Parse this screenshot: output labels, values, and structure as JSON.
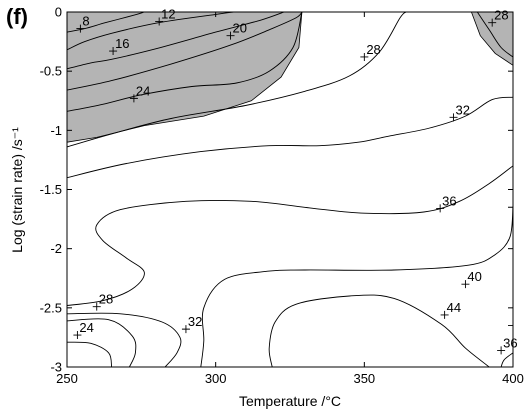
{
  "panel_label": "(f)",
  "chart_data": {
    "type": "contour",
    "xlabel": "Temperature /°C",
    "ylabel": "Log (strain rate) /s⁻¹",
    "xlim": [
      250,
      400
    ],
    "ylim": [
      -3,
      0
    ],
    "x_ticks": [
      {
        "v": 250,
        "label": "250"
      },
      {
        "v": 300,
        "label": "300"
      },
      {
        "v": 350,
        "label": "350"
      },
      {
        "v": 400,
        "label": "400"
      }
    ],
    "y_ticks": [
      {
        "v": 0,
        "label": "0"
      },
      {
        "v": -0.5,
        "label": "-0.5"
      },
      {
        "v": -1,
        "label": "-1"
      },
      {
        "v": -1.5,
        "label": "-1.5"
      },
      {
        "v": -2,
        "label": "-2"
      },
      {
        "v": -2.5,
        "label": "-2.5"
      },
      {
        "v": -3,
        "label": "-3"
      }
    ],
    "shaded_regions": [
      {
        "name": "instability-region-top-left",
        "fill": "#b4b4b4",
        "boundary": [
          [
            250,
            0
          ],
          [
            329,
            0
          ],
          [
            328,
            -0.3
          ],
          [
            322,
            -0.55
          ],
          [
            312,
            -0.75
          ],
          [
            296,
            -0.88
          ],
          [
            276,
            -0.96
          ],
          [
            260,
            -1.06
          ],
          [
            250,
            -1.1
          ]
        ]
      },
      {
        "name": "instability-region-top-right",
        "fill": "#b4b4b4",
        "boundary": [
          [
            386,
            0
          ],
          [
            400,
            0
          ],
          [
            400,
            -0.45
          ],
          [
            394,
            -0.35
          ],
          [
            389,
            -0.2
          ]
        ]
      }
    ],
    "contours": [
      {
        "level": 8,
        "label": "8",
        "label_at": [
          254.5,
          -0.14
        ],
        "points": [
          [
            250,
            -0.17
          ],
          [
            256,
            -0.14
          ],
          [
            263,
            -0.09
          ],
          [
            272,
            -0.03
          ],
          [
            276,
            0
          ]
        ]
      },
      {
        "level": 12,
        "label": "12",
        "label_at": [
          281,
          -0.08
        ],
        "points": [
          [
            250,
            -0.32
          ],
          [
            256,
            -0.25
          ],
          [
            265,
            -0.18
          ],
          [
            281,
            -0.09
          ],
          [
            300,
            -0.02
          ],
          [
            306,
            0
          ]
        ]
      },
      {
        "level": 16,
        "label": "16",
        "label_at": [
          265.5,
          -0.33
        ],
        "points": [
          [
            250,
            -0.48
          ],
          [
            258,
            -0.43
          ],
          [
            265,
            -0.4
          ],
          [
            280,
            -0.31
          ],
          [
            300,
            -0.17
          ],
          [
            315,
            -0.07
          ],
          [
            323,
            0
          ]
        ]
      },
      {
        "level": 20,
        "label": "20",
        "label_at": [
          305,
          -0.2
        ],
        "points": [
          [
            250,
            -0.66
          ],
          [
            265,
            -0.58
          ],
          [
            285,
            -0.44
          ],
          [
            305,
            -0.28
          ],
          [
            318,
            -0.15
          ],
          [
            327,
            -0.05
          ],
          [
            329,
            0
          ]
        ]
      },
      {
        "level": 24,
        "label": "24",
        "label_at": [
          272.5,
          -0.73
        ],
        "points": [
          [
            250,
            -0.84
          ],
          [
            262,
            -0.78
          ],
          [
            275,
            -0.7
          ],
          [
            292,
            -0.63
          ],
          [
            307,
            -0.6
          ],
          [
            318,
            -0.5
          ],
          [
            326,
            -0.3
          ],
          [
            329,
            0
          ]
        ]
      },
      {
        "level": 28,
        "label": "28",
        "label_at": [
          350,
          -0.38
        ],
        "points": [
          [
            250,
            -1.14
          ],
          [
            265,
            -1.03
          ],
          [
            285,
            -0.9
          ],
          [
            310,
            -0.79
          ],
          [
            330,
            -0.67
          ],
          [
            345,
            -0.54
          ],
          [
            355,
            -0.34
          ],
          [
            362,
            -0.05
          ],
          [
            364,
            0
          ]
        ]
      },
      {
        "level": 28,
        "label": "28",
        "label_at": [
          393,
          -0.09
        ],
        "points": [
          [
            388,
            0
          ],
          [
            392,
            -0.15
          ],
          [
            396,
            -0.3
          ],
          [
            400,
            -0.38
          ]
        ]
      },
      {
        "level": 32,
        "label": "32",
        "label_at": [
          380,
          -0.89
        ],
        "points": [
          [
            250,
            -1.4
          ],
          [
            270,
            -1.28
          ],
          [
            295,
            -1.18
          ],
          [
            318,
            -1.13
          ],
          [
            335,
            -1.13
          ],
          [
            348,
            -1.1
          ],
          [
            358,
            -1.05
          ],
          [
            372,
            -0.98
          ],
          [
            384,
            -0.88
          ],
          [
            393,
            -0.74
          ],
          [
            400,
            -0.72
          ]
        ]
      },
      {
        "level": 36,
        "label": "36",
        "label_at": [
          375.5,
          -1.66
        ],
        "points": [
          [
            400,
            -1.3
          ],
          [
            392,
            -1.45
          ],
          [
            382,
            -1.6
          ],
          [
            370,
            -1.69
          ],
          [
            350,
            -1.7
          ],
          [
            333,
            -1.66
          ],
          [
            312,
            -1.6
          ],
          [
            290,
            -1.6
          ],
          [
            268,
            -1.67
          ],
          [
            260,
            -1.8
          ],
          [
            262,
            -1.93
          ],
          [
            270,
            -2.08
          ],
          [
            276,
            -2.2
          ],
          [
            272,
            -2.34
          ],
          [
            262,
            -2.44
          ],
          [
            250,
            -2.48
          ]
        ]
      },
      {
        "level": 40,
        "label": "40",
        "label_at": [
          384,
          -2.3
        ],
        "points": [
          [
            400,
            -1.63
          ],
          [
            399,
            -1.9
          ],
          [
            394,
            -2.05
          ],
          [
            385,
            -2.14
          ],
          [
            360,
            -2.18
          ],
          [
            330,
            -2.18
          ],
          [
            318,
            -2.19
          ],
          [
            303,
            -2.26
          ],
          [
            296,
            -2.5
          ],
          [
            296,
            -2.78
          ],
          [
            295,
            -3.0
          ]
        ]
      },
      {
        "level": 44,
        "label": "44",
        "label_at": [
          377,
          -2.56
        ],
        "points": [
          [
            392,
            -3.0
          ],
          [
            384,
            -2.84
          ],
          [
            376,
            -2.64
          ],
          [
            360,
            -2.42
          ],
          [
            345,
            -2.4
          ],
          [
            327,
            -2.47
          ],
          [
            320,
            -2.62
          ],
          [
            318,
            -2.84
          ],
          [
            319,
            -3.0
          ]
        ]
      },
      {
        "level": 36,
        "label": "36",
        "label_at": [
          396,
          -2.86
        ],
        "points": [
          [
            400,
            -2.88
          ],
          [
            397,
            -2.94
          ],
          [
            396,
            -3.0
          ]
        ]
      },
      {
        "level": 32,
        "label": "32",
        "label_at": [
          290,
          -2.68
        ],
        "points": [
          [
            250,
            -2.55
          ],
          [
            268,
            -2.55
          ],
          [
            282,
            -2.62
          ],
          [
            288,
            -2.75
          ],
          [
            287,
            -2.88
          ],
          [
            283,
            -3.0
          ]
        ]
      },
      {
        "level": 28,
        "label": "28",
        "label_at": [
          260,
          -2.49
        ],
        "points": [
          [
            250,
            -2.61
          ],
          [
            264,
            -2.6
          ],
          [
            272,
            -2.74
          ],
          [
            273,
            -2.88
          ],
          [
            271,
            -3.0
          ]
        ]
      },
      {
        "level": 24,
        "label": "24",
        "label_at": [
          253.5,
          -2.73
        ],
        "points": [
          [
            250,
            -2.79
          ],
          [
            258,
            -2.8
          ],
          [
            264,
            -2.88
          ],
          [
            265,
            -3.0
          ]
        ]
      }
    ],
    "right_edge_markers": [
      {
        "name": "edge-mark-upper",
        "at": [
          400,
          -1.65
        ]
      },
      {
        "name": "edge-mark-lower",
        "at": [
          400,
          -2.65
        ]
      }
    ]
  }
}
